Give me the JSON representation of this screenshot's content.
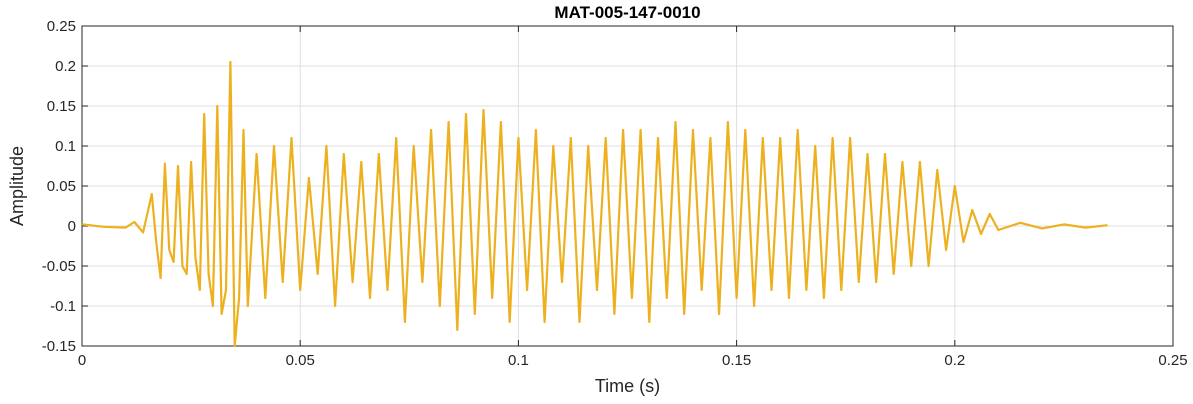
{
  "chart_data": {
    "type": "line",
    "title": "MAT-005-147-0010",
    "xlabel": "Time (s)",
    "ylabel": "Amplitude",
    "xlim": [
      0,
      0.25
    ],
    "ylim": [
      -0.15,
      0.25
    ],
    "grid": true,
    "xticks": [
      0,
      0.05,
      0.1,
      0.15,
      0.2,
      0.25
    ],
    "xtick_labels": [
      "0",
      "0.05",
      "0.1",
      "0.15",
      "0.2",
      "0.25"
    ],
    "yticks": [
      -0.15,
      -0.1,
      -0.05,
      0,
      0.05,
      0.1,
      0.15,
      0.2,
      0.25
    ],
    "ytick_labels": [
      "-0.15",
      "-0.1",
      "-0.05",
      "0",
      "0.05",
      "0.1",
      "0.15",
      "0.2",
      "0.25"
    ],
    "series": [
      {
        "color": "#EDB120",
        "x": [
          0,
          0.005,
          0.01,
          0.012,
          0.014,
          0.016,
          0.017,
          0.018,
          0.019,
          0.02,
          0.021,
          0.022,
          0.023,
          0.024,
          0.025,
          0.026,
          0.027,
          0.028,
          0.029,
          0.03,
          0.031,
          0.032,
          0.033,
          0.034,
          0.035,
          0.036,
          0.037,
          0.038,
          0.04,
          0.042,
          0.044,
          0.046,
          0.048,
          0.05,
          0.052,
          0.054,
          0.056,
          0.058,
          0.06,
          0.062,
          0.064,
          0.066,
          0.068,
          0.07,
          0.072,
          0.074,
          0.076,
          0.078,
          0.08,
          0.082,
          0.084,
          0.086,
          0.088,
          0.09,
          0.092,
          0.094,
          0.096,
          0.098,
          0.1,
          0.102,
          0.104,
          0.106,
          0.108,
          0.11,
          0.112,
          0.114,
          0.116,
          0.118,
          0.12,
          0.122,
          0.124,
          0.126,
          0.128,
          0.13,
          0.132,
          0.134,
          0.136,
          0.138,
          0.14,
          0.142,
          0.144,
          0.146,
          0.148,
          0.15,
          0.152,
          0.154,
          0.156,
          0.158,
          0.16,
          0.162,
          0.164,
          0.166,
          0.168,
          0.17,
          0.172,
          0.174,
          0.176,
          0.178,
          0.18,
          0.182,
          0.184,
          0.186,
          0.188,
          0.19,
          0.192,
          0.194,
          0.196,
          0.198,
          0.2,
          0.202,
          0.204,
          0.206,
          0.208,
          0.21,
          0.215,
          0.22,
          0.225,
          0.23,
          0.235
        ],
        "y": [
          0.002,
          -0.001,
          -0.002,
          0.005,
          -0.008,
          0.04,
          -0.02,
          -0.065,
          0.078,
          -0.03,
          -0.045,
          0.075,
          -0.05,
          -0.06,
          0.08,
          -0.04,
          -0.08,
          0.14,
          -0.06,
          -0.1,
          0.15,
          -0.11,
          -0.08,
          0.205,
          -0.15,
          -0.09,
          0.12,
          -0.1,
          0.09,
          -0.09,
          0.1,
          -0.07,
          0.11,
          -0.08,
          0.06,
          -0.06,
          0.1,
          -0.1,
          0.09,
          -0.07,
          0.08,
          -0.09,
          0.09,
          -0.08,
          0.11,
          -0.12,
          0.1,
          -0.07,
          0.12,
          -0.1,
          0.13,
          -0.13,
          0.14,
          -0.11,
          0.145,
          -0.09,
          0.13,
          -0.12,
          0.11,
          -0.08,
          0.12,
          -0.12,
          0.1,
          -0.07,
          0.11,
          -0.12,
          0.1,
          -0.08,
          0.11,
          -0.11,
          0.12,
          -0.09,
          0.12,
          -0.12,
          0.11,
          -0.09,
          0.13,
          -0.11,
          0.12,
          -0.08,
          0.11,
          -0.11,
          0.13,
          -0.09,
          0.12,
          -0.1,
          0.11,
          -0.08,
          0.11,
          -0.09,
          0.12,
          -0.08,
          0.1,
          -0.09,
          0.11,
          -0.08,
          0.11,
          -0.07,
          0.09,
          -0.07,
          0.09,
          -0.06,
          0.08,
          -0.05,
          0.08,
          -0.05,
          0.07,
          -0.03,
          0.05,
          -0.02,
          0.02,
          -0.01,
          0.015,
          -0.005,
          0.004,
          -0.003,
          0.002,
          -0.002,
          0.001
        ]
      }
    ]
  }
}
